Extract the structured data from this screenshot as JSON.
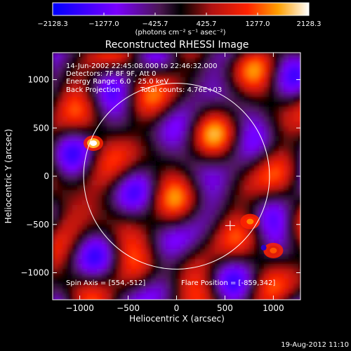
{
  "chart_data": {
    "type": "heatmap",
    "title": "Reconstructed RHESSI Image",
    "xlabel": "Heliocentric X (arcsec)",
    "ylabel": "Heliocentric Y (arcsec)",
    "xlim": [
      -1280,
      1280
    ],
    "ylim": [
      -1280,
      1280
    ],
    "xticks": [
      -1000,
      -500,
      0,
      500,
      1000
    ],
    "xtick_labels": [
      "−1000",
      "−500",
      "0",
      "500",
      "1000"
    ],
    "yticks": [
      1000,
      500,
      0,
      -500,
      -1000
    ],
    "ytick_labels": [
      "1000",
      "500",
      "0",
      "−500",
      "−1000"
    ],
    "colorbar": {
      "ticks": [
        -2128.3,
        -1277.0,
        -425.7,
        425.7,
        1277.0,
        2128.3
      ],
      "tick_labels": [
        "−2128.3",
        "−1277.0",
        "−425.7",
        "425.7",
        "1277.0",
        "2128.3"
      ],
      "units": "(photons cm⁻² s⁻¹ asec⁻²)",
      "min": -2128.3,
      "max": 2128.3
    },
    "annotations": [
      "14-Jun-2002 22:45:08.000 to 22:46:32.000",
      "Detectors: 7F 8F 9F, Att 0",
      "Energy Range: 6.0 - 25.0 keV",
      "Back Projection",
      "Total counts: 4.76E+03"
    ],
    "spin_axis": "Spin Axis = [554,-512]",
    "flare_position": "Flare Position = [-859,342]",
    "sources": [
      {
        "x": -859,
        "y": 342,
        "value": 2128.3
      },
      {
        "x": 760,
        "y": -470,
        "value": 1500.0
      },
      {
        "x": 1000,
        "y": -770,
        "value": 1300.0
      }
    ],
    "spin_axis_marker": {
      "x": 554,
      "y": -512
    },
    "solar_disk": {
      "x": 0,
      "y": 0,
      "radius": 960
    },
    "minimum_marker": {
      "x": 900,
      "y": -740
    }
  },
  "footer": {
    "timestamp": "19-Aug-2012 11:10"
  }
}
